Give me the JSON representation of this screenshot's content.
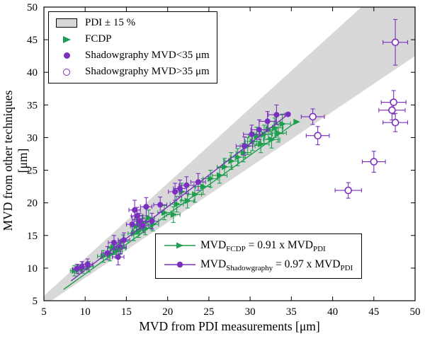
{
  "colors": {
    "green": "#1e9e4f",
    "purple": "#7b2fbe",
    "band": "#d8d8d8"
  },
  "axes": {
    "x_label": "MVD from PDI measurements [μm]",
    "y_label": "MVD from other techniques [μm]"
  },
  "legend1": {
    "band": "PDI ± 15 %",
    "fcdp": "FCDP",
    "shadow_lt": "Shadowgraphy MVD<35 μm",
    "shadow_gt": "Shadowgraphy MVD>35 μm"
  },
  "legend2": {
    "fcdp": {
      "pre": "MVD",
      "sub": "FCDP",
      "mid": " = 0.91 x MVD",
      "sub2": "PDI"
    },
    "shadow": {
      "pre": "MVD",
      "sub": "Shadowgraphy",
      "mid": " = 0.97 x MVD",
      "sub2": "PDI"
    }
  },
  "chart_data": {
    "type": "scatter",
    "title": "",
    "xlabel": "MVD from PDI measurements [μm]",
    "ylabel": "MVD from other techniques [μm]",
    "xlim": [
      5,
      50
    ],
    "ylim": [
      5,
      50
    ],
    "xticks": [
      5,
      10,
      15,
      20,
      25,
      30,
      35,
      40,
      45,
      50
    ],
    "yticks": [
      5,
      10,
      15,
      20,
      25,
      30,
      35,
      40,
      45,
      50
    ],
    "grid": false,
    "band": {
      "label": "PDI ± 15 %",
      "low": 0.85,
      "high": 1.15,
      "color": "#d8d8d8"
    },
    "fits": [
      {
        "name": "MVD_FCDP = 0.91 x MVD_PDI",
        "slope": 0.91,
        "x_range": [
          7.4,
          35.6
        ],
        "color": "#1e9e4f",
        "end_marker": "triangle-right"
      },
      {
        "name": "MVD_Shadowgraphy = 0.97 x MVD_PDI",
        "slope": 0.97,
        "x_range": [
          8.3,
          34.6
        ],
        "color": "#7b2fbe",
        "end_marker": "circle"
      }
    ],
    "series": [
      {
        "name": "FCDP",
        "marker": "triangle-right",
        "color": "#1e9e4f",
        "points": [
          [
            8.7,
            9.6,
            0.5,
            0.8
          ],
          [
            9.2,
            9.8,
            0.5,
            0.7
          ],
          [
            9.7,
            9.9,
            0.5,
            0.7
          ],
          [
            10.4,
            10.2,
            0.6,
            0.8
          ],
          [
            12.2,
            11.8,
            0.7,
            0.9
          ],
          [
            13.0,
            12.1,
            0.7,
            1.0
          ],
          [
            13.4,
            13.2,
            0.6,
            0.9
          ],
          [
            13.8,
            12.6,
            0.7,
            1.1
          ],
          [
            14.2,
            13.0,
            0.7,
            0.9
          ],
          [
            14.6,
            14.1,
            0.6,
            1.0
          ],
          [
            15.9,
            15.3,
            0.7,
            1.1
          ],
          [
            16.2,
            16.4,
            0.7,
            1.2
          ],
          [
            16.5,
            15.7,
            0.7,
            1.0
          ],
          [
            16.9,
            17.0,
            0.6,
            1.1
          ],
          [
            17.3,
            16.1,
            0.7,
            1.0
          ],
          [
            17.7,
            17.7,
            0.7,
            1.2
          ],
          [
            18.2,
            16.7,
            0.7,
            1.0
          ],
          [
            19.6,
            18.5,
            0.8,
            1.1
          ],
          [
            20.7,
            18.2,
            0.8,
            1.2
          ],
          [
            21.1,
            19.8,
            0.8,
            1.2
          ],
          [
            21.7,
            21.7,
            0.8,
            1.3
          ],
          [
            22.4,
            20.3,
            0.8,
            1.1
          ],
          [
            23.3,
            21.3,
            0.8,
            1.2
          ],
          [
            24.3,
            22.5,
            0.9,
            1.2
          ],
          [
            25.2,
            23.7,
            0.9,
            1.3
          ],
          [
            26.3,
            24.2,
            0.9,
            1.2
          ],
          [
            26.9,
            25.5,
            0.9,
            1.3
          ],
          [
            27.7,
            26.4,
            0.9,
            1.3
          ],
          [
            28.5,
            27.0,
            0.9,
            1.3
          ],
          [
            29.2,
            27.7,
            0.9,
            1.4
          ],
          [
            29.7,
            28.7,
            0.9,
            1.3
          ],
          [
            30.3,
            29.4,
            0.9,
            1.4
          ],
          [
            30.8,
            30.2,
            1.0,
            1.4
          ],
          [
            31.3,
            29.0,
            1.0,
            1.3
          ],
          [
            31.7,
            30.5,
            1.0,
            1.4
          ],
          [
            32.2,
            31.2,
            1.0,
            1.4
          ],
          [
            32.6,
            29.7,
            1.0,
            1.3
          ],
          [
            33.0,
            31.5,
            1.0,
            1.5
          ],
          [
            33.4,
            30.7,
            1.0,
            1.4
          ],
          [
            33.9,
            32.1,
            1.0,
            1.5
          ]
        ]
      },
      {
        "name": "Shadowgraphy MVD<35 μm",
        "marker": "circle",
        "color": "#7b2fbe",
        "points": [
          [
            9.0,
            9.9,
            0.5,
            0.7
          ],
          [
            9.6,
            10.2,
            0.5,
            0.8
          ],
          [
            10.3,
            10.6,
            0.6,
            0.8
          ],
          [
            12.7,
            12.3,
            0.7,
            1.0
          ],
          [
            13.5,
            13.9,
            0.7,
            1.1
          ],
          [
            14.0,
            11.7,
            0.7,
            1.2
          ],
          [
            14.3,
            13.2,
            0.7,
            1.0
          ],
          [
            14.7,
            14.3,
            0.7,
            1.1
          ],
          [
            15.7,
            16.7,
            0.7,
            1.3
          ],
          [
            16.0,
            18.9,
            0.7,
            1.5
          ],
          [
            16.3,
            18.0,
            0.7,
            1.3
          ],
          [
            16.6,
            17.2,
            0.7,
            1.2
          ],
          [
            17.0,
            16.5,
            0.7,
            1.1
          ],
          [
            17.4,
            19.4,
            0.7,
            1.4
          ],
          [
            18.1,
            17.2,
            0.8,
            1.2
          ],
          [
            19.1,
            19.7,
            0.8,
            1.2
          ],
          [
            20.9,
            21.7,
            0.8,
            1.3
          ],
          [
            21.5,
            22.2,
            0.8,
            1.3
          ],
          [
            22.3,
            22.7,
            0.9,
            1.3
          ],
          [
            23.7,
            23.2,
            0.9,
            1.3
          ],
          [
            29.3,
            28.7,
            1.0,
            1.4
          ],
          [
            30.2,
            30.5,
            1.0,
            1.4
          ],
          [
            31.1,
            31.2,
            1.0,
            1.5
          ],
          [
            32.1,
            32.5,
            1.0,
            1.5
          ],
          [
            33.2,
            33.5,
            1.0,
            1.5
          ]
        ]
      },
      {
        "name": "Shadowgraphy MVD>35 μm",
        "marker": "circle-open",
        "color": "#7b2fbe",
        "points": [
          [
            37.6,
            33.2,
            1.4,
            1.2
          ],
          [
            38.2,
            30.3,
            1.4,
            1.4
          ],
          [
            41.9,
            21.9,
            1.6,
            1.2
          ],
          [
            45.0,
            26.3,
            1.4,
            1.6
          ],
          [
            47.6,
            44.6,
            1.5,
            3.5
          ],
          [
            47.4,
            35.4,
            1.5,
            1.8
          ],
          [
            47.2,
            34.2,
            1.6,
            1.5
          ],
          [
            47.6,
            32.3,
            1.5,
            1.4
          ]
        ]
      }
    ]
  }
}
